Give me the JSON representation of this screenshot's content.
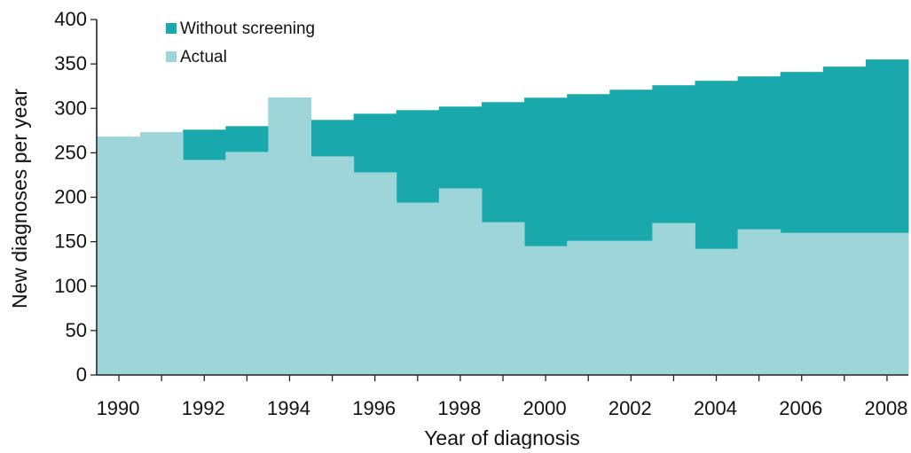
{
  "chart_data": {
    "type": "area",
    "title": "",
    "xlabel": "Year of diagnosis",
    "ylabel": "New diagnoses per year",
    "ylim": [
      0,
      400
    ],
    "yticks": [
      0,
      50,
      100,
      150,
      200,
      250,
      300,
      350,
      400
    ],
    "xticks": [
      "1990",
      "1992",
      "1994",
      "1996",
      "1998",
      "2000",
      "2002",
      "2004",
      "2006",
      "2008"
    ],
    "x": [
      "1990",
      "1991",
      "1992",
      "1993",
      "1994",
      "1995",
      "1996",
      "1997",
      "1998",
      "1999",
      "2000",
      "2001",
      "2002",
      "2003",
      "2004",
      "2005",
      "2006",
      "2007",
      "2008"
    ],
    "series": [
      {
        "name": "Without screening",
        "color": "#19a9ad",
        "values": [
          268,
          273,
          276,
          280,
          312,
          287,
          294,
          298,
          302,
          307,
          312,
          316,
          321,
          326,
          331,
          336,
          341,
          347,
          355
        ]
      },
      {
        "name": "Actual",
        "color": "#9dd5d8",
        "values": [
          268,
          273,
          242,
          251,
          312,
          246,
          228,
          194,
          210,
          172,
          145,
          151,
          151,
          171,
          142,
          164,
          160,
          160,
          160
        ]
      }
    ],
    "legend_position": "top-left",
    "grid": false
  }
}
